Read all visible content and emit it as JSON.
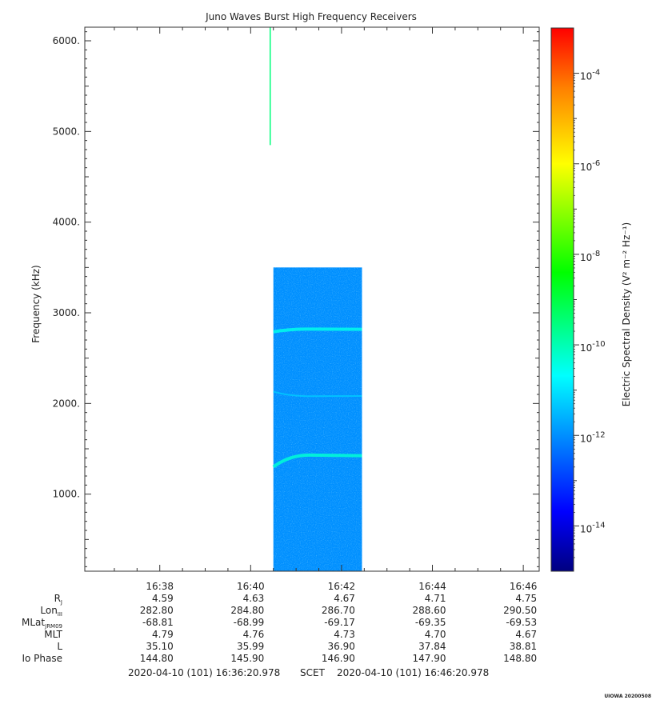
{
  "chart_data": {
    "type": "heatmap",
    "title": "Juno Waves Burst High Frequency Receivers",
    "ylabel": "Frequency (kHz)",
    "ylim": [
      150,
      6150
    ],
    "yticks": [
      1000,
      2000,
      3000,
      4000,
      5000,
      6000
    ],
    "ytick_labels": [
      "1000.",
      "2000.",
      "3000.",
      "4000.",
      "5000.",
      "6000."
    ],
    "x_range_min": [
      0,
      10
    ],
    "xticks_min": [
      1.65,
      3.65,
      5.65,
      7.65,
      9.65
    ],
    "xtick_labels": [
      "16:38",
      "16:40",
      "16:42",
      "16:44",
      "16:46"
    ],
    "colorbar": {
      "label": "Electric Spectral Density (V² m⁻² Hz⁻¹)",
      "scale": "log",
      "range_log10": [
        -15,
        -3
      ],
      "ticks_log10": [
        -14,
        -12,
        -10,
        -8,
        -6,
        -4
      ],
      "tick_base": "10",
      "tick_exponents": [
        "-14",
        "-12",
        "-10",
        "-8",
        "-6",
        "-4"
      ]
    },
    "data_block": {
      "x_min": [
        4.15,
        6.1
      ],
      "y_khz": [
        150,
        3500
      ],
      "level_log10": -12
    },
    "emission_bands": [
      {
        "x_min": [
          4.15,
          6.1
        ],
        "y_khz": [
          2790,
          2820
        ],
        "level_log10": -10.5
      },
      {
        "x_min": [
          4.15,
          6.1
        ],
        "y_khz": [
          2130,
          2080
        ],
        "level_log10": -11.3
      },
      {
        "x_min": [
          4.15,
          6.1
        ],
        "y_khz": [
          1300,
          1430
        ],
        "level_log10": -10.3
      }
    ],
    "spike": {
      "x_min": 4.08,
      "y_khz": [
        4850,
        6150
      ],
      "level_log10": -9.5
    }
  },
  "ephemeris": {
    "row_labels": [
      {
        "main": "R",
        "sub": "J"
      },
      {
        "main": "Lon",
        "sub": "III"
      },
      {
        "main": "MLat",
        "sub": "JRM09"
      },
      {
        "main": "MLT",
        "sub": ""
      },
      {
        "main": "L",
        "sub": ""
      },
      {
        "main": "Io Phase",
        "sub": ""
      }
    ],
    "values": [
      [
        "4.59",
        "4.63",
        "4.67",
        "4.71",
        "4.75"
      ],
      [
        "282.80",
        "284.80",
        "286.70",
        "288.60",
        "290.50"
      ],
      [
        "-68.81",
        "-68.99",
        "-69.17",
        "-69.35",
        "-69.53"
      ],
      [
        "4.79",
        "4.76",
        "4.73",
        "4.70",
        "4.67"
      ],
      [
        "35.10",
        "35.99",
        "36.90",
        "37.84",
        "38.81"
      ],
      [
        "144.80",
        "145.90",
        "146.90",
        "147.90",
        "148.80"
      ]
    ]
  },
  "time_range": {
    "start": "2020-04-10 (101) 16:36:20.978",
    "label": "SCET",
    "end": "2020-04-10 (101) 16:46:20.978"
  },
  "footer_stamp": "UIOWA 20200508"
}
